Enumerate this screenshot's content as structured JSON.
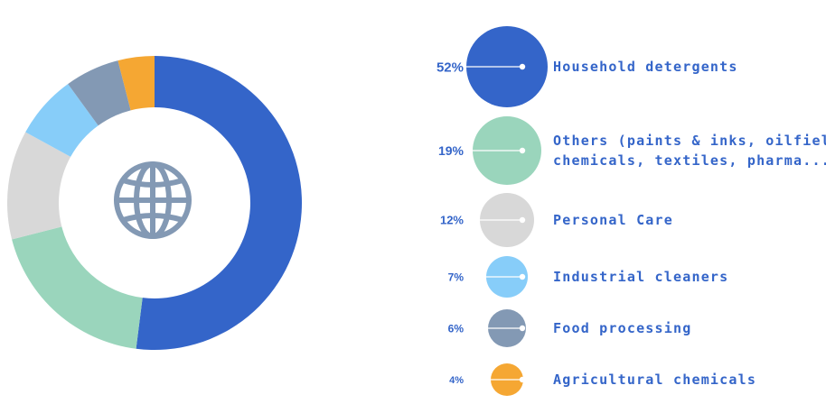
{
  "chart_data": {
    "type": "pie",
    "variant": "donut",
    "categories": [
      "Household detergents",
      "Others (paints & inks, oilfield chemicals, textiles, pharma...)",
      "Personal Care",
      "Industrial cleaners",
      "Food processing",
      "Agricultural chemicals"
    ],
    "values": [
      52,
      19,
      12,
      7,
      6,
      4
    ],
    "value_labels": [
      "52%",
      "19%",
      "12%",
      "7%",
      "6%",
      "4%"
    ],
    "label_lines": [
      [
        "Household detergents"
      ],
      [
        "Others (paints & inks, oilfield",
        "chemicals, textiles, pharma...)"
      ],
      [
        "Personal Care"
      ],
      [
        "Industrial cleaners"
      ],
      [
        "Food processing"
      ],
      [
        "Agricultural chemicals"
      ]
    ],
    "colors": [
      "#3465c9",
      "#9ad5bc",
      "#d8d8d8",
      "#87cdf9",
      "#8399b4",
      "#f5a733"
    ],
    "center_icon": "globe-icon",
    "center_icon_color": "#8399b4",
    "legend_placement": "right",
    "title": "",
    "xlabel": "",
    "ylabel": ""
  }
}
